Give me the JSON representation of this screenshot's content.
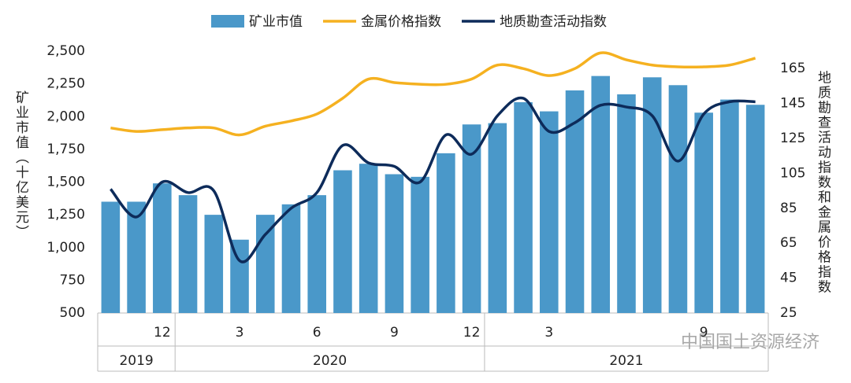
{
  "chart_data": {
    "type": "bar",
    "categories": [
      null,
      null,
      "12",
      null,
      null,
      "3",
      null,
      null,
      "6",
      null,
      null,
      "9",
      null,
      null,
      "12",
      null,
      null,
      "3",
      null,
      null,
      null,
      null,
      null,
      "9",
      null,
      null
    ],
    "year_groups": [
      {
        "label": "2019",
        "months": 3
      },
      {
        "label": "2020",
        "months": 12
      },
      {
        "label": "2021",
        "months": 11
      }
    ],
    "series": [
      {
        "name": "矿业市值",
        "type": "bar",
        "color": "#4a98c9",
        "axis": "y",
        "values": [
          1350,
          1350,
          1490,
          1400,
          1250,
          1060,
          1250,
          1330,
          1400,
          1590,
          1640,
          1560,
          1540,
          1720,
          1940,
          1950,
          2110,
          2040,
          2200,
          2310,
          2170,
          2300,
          2240,
          2030,
          2130,
          2090
        ]
      },
      {
        "name": "金属价格指数",
        "type": "line",
        "color": "#f5b120",
        "axis": "y2",
        "values": [
          131,
          129,
          130,
          131,
          131,
          127,
          132,
          135,
          139,
          148,
          159,
          157,
          156,
          156,
          159,
          167,
          165,
          161,
          165,
          174,
          170,
          167,
          166,
          166,
          167,
          171
        ]
      },
      {
        "name": "地质勘查活动指数",
        "type": "line",
        "color": "#0d2b5a",
        "axis": "y2",
        "values": [
          96,
          80,
          100,
          94,
          95,
          55,
          70,
          85,
          94,
          121,
          111,
          109,
          100,
          127,
          116,
          138,
          148,
          129,
          134,
          144,
          143,
          138,
          112,
          139,
          146,
          146
        ]
      }
    ],
    "y_label": "矿业市值（十亿美元）",
    "y2_label": "地质勘查活动指数和金属价格指数",
    "ylim": [
      500,
      2500
    ],
    "yticks": [
      500,
      750,
      {
        "value": 1000,
        "label": "1,000"
      },
      {
        "value": 1250,
        "label": "1,250"
      },
      {
        "value": 1500,
        "label": "1,500"
      },
      {
        "value": 1750,
        "label": "1,750"
      },
      {
        "value": 2000,
        "label": "2,000"
      },
      {
        "value": 2250,
        "label": "2,250"
      },
      {
        "value": 2500,
        "label": "2,500"
      }
    ],
    "y2lim": [
      25,
      175
    ],
    "y2ticks": [
      25,
      45,
      65,
      85,
      105,
      125,
      145,
      165
    ],
    "watermark": "中国国土资源经济",
    "grid": false
  }
}
